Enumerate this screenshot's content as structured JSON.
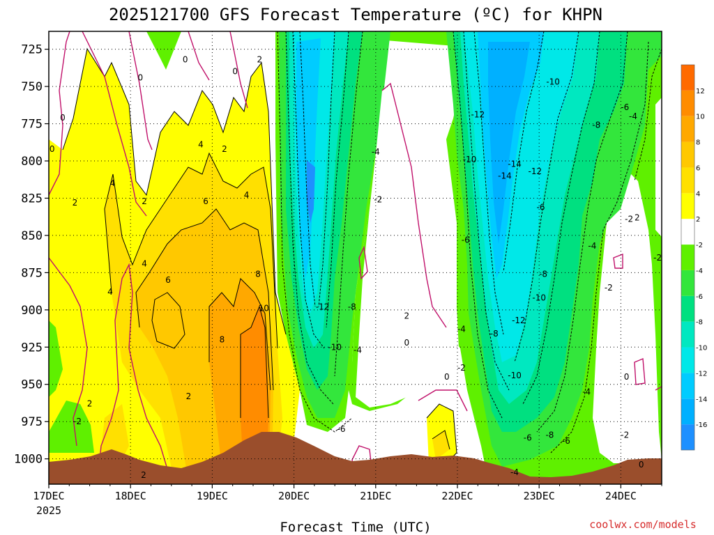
{
  "chart_data": {
    "type": "heatmap",
    "title": "2025121700 GFS Forecast Temperature (ºC) for KHPN",
    "xlabel": "Forecast Time (UTC)",
    "ylabel": "",
    "credit": "coolwx.com/models",
    "x_ticks": [
      "17DEC",
      "18DEC",
      "19DEC",
      "20DEC",
      "21DEC",
      "22DEC",
      "23DEC",
      "24DEC"
    ],
    "x_year_label": "2025",
    "xlim_days": [
      0,
      7.5
    ],
    "y_ticks": [
      "725",
      "750",
      "775",
      "800",
      "825",
      "850",
      "875",
      "900",
      "925",
      "950",
      "975",
      "1000"
    ],
    "ylim_hpa": [
      713,
      1017
    ],
    "colorbar": {
      "levels": [
        -18,
        -16,
        -14,
        -12,
        -10,
        -8,
        -6,
        -4,
        -2,
        2,
        4,
        6,
        8,
        10,
        12,
        14
      ],
      "tick_labels": [
        "-16",
        "-14",
        "-12",
        "-10",
        "-8",
        "-6",
        "-4",
        "-2",
        "2",
        "4",
        "6",
        "8",
        "10",
        "12"
      ],
      "colors": [
        "#1e90ff",
        "#00b0ff",
        "#00ccff",
        "#00e8e8",
        "#00e8c0",
        "#00e080",
        "#33e63c",
        "#5ff000",
        "#ffffff",
        "#ffff00",
        "#ffe000",
        "#ffc800",
        "#ffa800",
        "#ff8c00",
        "#ff6a00"
      ]
    },
    "colors": {
      "terrain": "#9a4e2c",
      "zero_contour": "#c0106a",
      "contour": "#000000"
    },
    "temperature_profile": {
      "description": "approximate mean temperature (ºC) by forecast time, with warm layer aloft",
      "t_days": [
        0,
        0.5,
        1,
        1.5,
        2,
        2.5,
        2.8,
        3,
        3.5,
        4,
        4.4,
        5,
        5.5,
        6,
        6.5,
        7,
        7.5
      ],
      "t_850": [
        0,
        1,
        3,
        5,
        6,
        7,
        8,
        -6,
        -10,
        0,
        2,
        -6,
        -12,
        -10,
        -8,
        -3,
        0
      ]
    },
    "contour_labels": [
      {
        "text": "0",
        "t": 1.12,
        "p": 744
      },
      {
        "text": "0",
        "t": 1.67,
        "p": 732
      },
      {
        "text": "0",
        "t": 2.28,
        "p": 740
      },
      {
        "text": "2",
        "t": 2.58,
        "p": 732
      },
      {
        "text": "0",
        "t": 0.17,
        "p": 771
      },
      {
        "text": "0",
        "t": 0.04,
        "p": 792
      },
      {
        "text": "4",
        "t": 1.86,
        "p": 789
      },
      {
        "text": "2",
        "t": 2.15,
        "p": 792
      },
      {
        "text": "4",
        "t": 0.78,
        "p": 815
      },
      {
        "text": "2",
        "t": 0.32,
        "p": 828
      },
      {
        "text": "2",
        "t": 1.17,
        "p": 827
      },
      {
        "text": "6",
        "t": 1.92,
        "p": 827
      },
      {
        "text": "4",
        "t": 2.42,
        "p": 823
      },
      {
        "text": "4",
        "t": 1.17,
        "p": 869
      },
      {
        "text": "6",
        "t": 1.46,
        "p": 880
      },
      {
        "text": "4",
        "t": 0.75,
        "p": 888
      },
      {
        "text": "8",
        "t": 2.56,
        "p": 876
      },
      {
        "text": "10",
        "t": 2.63,
        "p": 899
      },
      {
        "text": "8",
        "t": 2.12,
        "p": 920
      },
      {
        "text": "2",
        "t": 1.71,
        "p": 958
      },
      {
        "text": "2",
        "t": 0.5,
        "p": 963
      },
      {
        "text": "-2",
        "t": 0.35,
        "p": 975
      },
      {
        "text": "2",
        "t": 1.16,
        "p": 1011
      },
      {
        "text": "-12",
        "t": 3.35,
        "p": 898
      },
      {
        "text": "-8",
        "t": 3.71,
        "p": 898
      },
      {
        "text": "-10",
        "t": 3.5,
        "p": 925
      },
      {
        "text": "-4",
        "t": 3.78,
        "p": 927
      },
      {
        "text": "-6",
        "t": 3.58,
        "p": 980
      },
      {
        "text": "-4",
        "t": 4.0,
        "p": 794
      },
      {
        "text": "-2",
        "t": 4.03,
        "p": 826
      },
      {
        "text": "2",
        "t": 4.38,
        "p": 904
      },
      {
        "text": "0",
        "t": 4.38,
        "p": 922
      },
      {
        "text": "0",
        "t": 4.87,
        "p": 945
      },
      {
        "text": "-2",
        "t": 5.05,
        "p": 939
      },
      {
        "text": "-4",
        "t": 5.05,
        "p": 913
      },
      {
        "text": "-6",
        "t": 5.1,
        "p": 853
      },
      {
        "text": "-10",
        "t": 5.15,
        "p": 799
      },
      {
        "text": "-12",
        "t": 5.25,
        "p": 769
      },
      {
        "text": "-14",
        "t": 5.58,
        "p": 810
      },
      {
        "text": "-14",
        "t": 5.7,
        "p": 802
      },
      {
        "text": "-12",
        "t": 5.95,
        "p": 807
      },
      {
        "text": "-10",
        "t": 6.17,
        "p": 747
      },
      {
        "text": "-8",
        "t": 6.05,
        "p": 876
      },
      {
        "text": "-10",
        "t": 6.0,
        "p": 892
      },
      {
        "text": "-12",
        "t": 5.75,
        "p": 907
      },
      {
        "text": "-8",
        "t": 5.45,
        "p": 916
      },
      {
        "text": "-10",
        "t": 5.7,
        "p": 944
      },
      {
        "text": "-6",
        "t": 6.02,
        "p": 831
      },
      {
        "text": "-8",
        "t": 6.7,
        "p": 776
      },
      {
        "text": "-6",
        "t": 7.05,
        "p": 764
      },
      {
        "text": "-4",
        "t": 7.15,
        "p": 770
      },
      {
        "text": "-4",
        "t": 6.65,
        "p": 857
      },
      {
        "text": "-2",
        "t": 6.85,
        "p": 885
      },
      {
        "text": "-2",
        "t": 7.1,
        "p": 839
      },
      {
        "text": "2",
        "t": 7.2,
        "p": 838
      },
      {
        "text": "-2",
        "t": 7.45,
        "p": 865
      },
      {
        "text": "0",
        "t": 7.07,
        "p": 945
      },
      {
        "text": "-2",
        "t": 7.05,
        "p": 984
      },
      {
        "text": "-4",
        "t": 6.58,
        "p": 955
      },
      {
        "text": "-6",
        "t": 6.33,
        "p": 988
      },
      {
        "text": "-8",
        "t": 6.13,
        "p": 984
      },
      {
        "text": "-6",
        "t": 5.86,
        "p": 986
      },
      {
        "text": "-4",
        "t": 5.7,
        "p": 1009
      },
      {
        "text": "0",
        "t": 7.25,
        "p": 1004
      }
    ]
  }
}
